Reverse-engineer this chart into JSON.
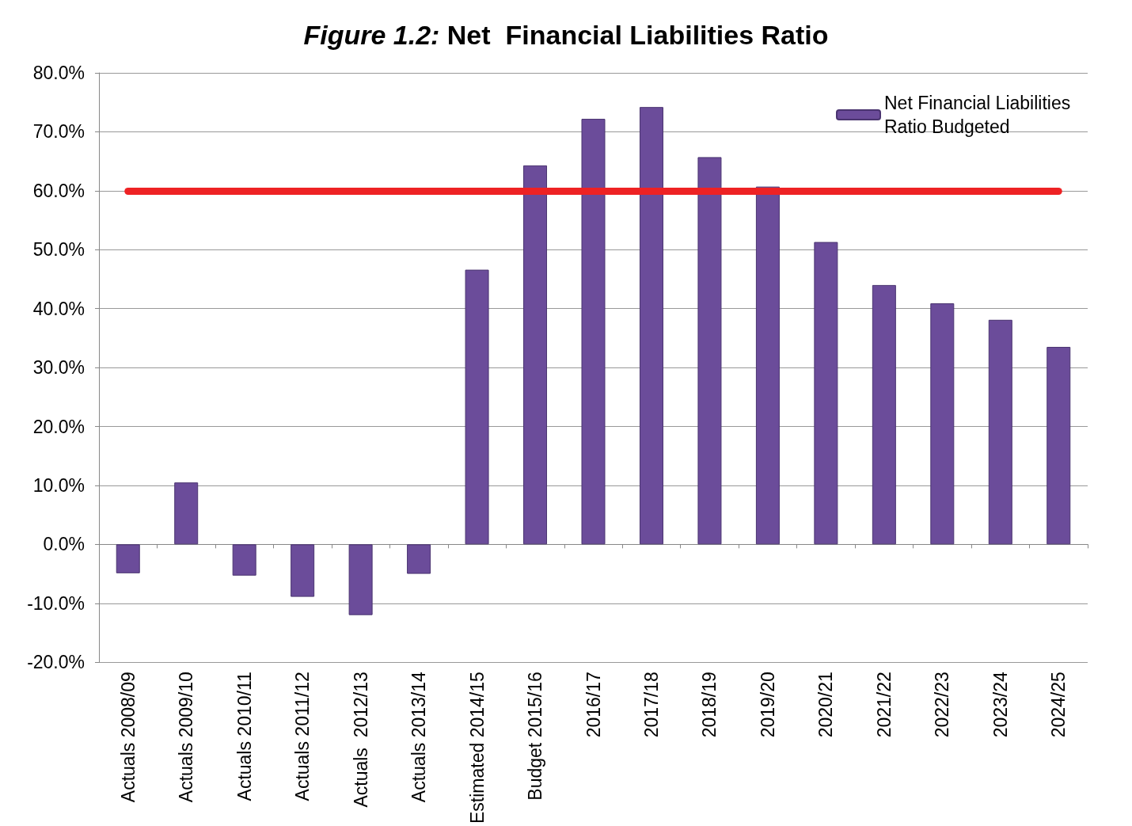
{
  "chart_data": {
    "type": "bar",
    "title": "Figure 1.2: Net  Financial Liabilities Ratio",
    "categories": [
      "Actuals 2008/09",
      "Actuals 2009/10",
      "Actuals 2010/11",
      "Actuals 2011/12",
      "Actuals  2012/13",
      "Actuals 2013/14",
      "Estimated 2014/15",
      "Budget 2015/16",
      "2016/17",
      "2017/18",
      "2018/19",
      "2019/20",
      "2020/21",
      "2021/22",
      "2022/23",
      "2023/24",
      "2024/25"
    ],
    "series": [
      {
        "name": "Net Financial Liabilities Ratio Budgeted",
        "color": "#6b4c9a",
        "values": [
          -4.9,
          10.5,
          -5.3,
          -8.9,
          -12.0,
          -5.0,
          46.6,
          64.3,
          72.2,
          74.2,
          65.7,
          60.7,
          51.3,
          44.0,
          40.9,
          38.1,
          33.5
        ]
      }
    ],
    "ylim": [
      -20,
      80
    ],
    "yticks": [
      {
        "value": -20,
        "label": "-20.0%"
      },
      {
        "value": -10,
        "label": "-10.0%"
      },
      {
        "value": 0,
        "label": "0.0%"
      },
      {
        "value": 10,
        "label": "10.0%"
      },
      {
        "value": 20,
        "label": "20.0%"
      },
      {
        "value": 30,
        "label": "30.0%"
      },
      {
        "value": 40,
        "label": "40.0%"
      },
      {
        "value": 50,
        "label": "50.0%"
      },
      {
        "value": 60,
        "label": "60.0%"
      },
      {
        "value": 70,
        "label": "70.0%"
      },
      {
        "value": 80,
        "label": "80.0%"
      }
    ],
    "ref_lines": [
      {
        "axis": "y",
        "value": 60,
        "color": "#ee2224"
      }
    ],
    "grid": "y",
    "legend": "top right"
  }
}
